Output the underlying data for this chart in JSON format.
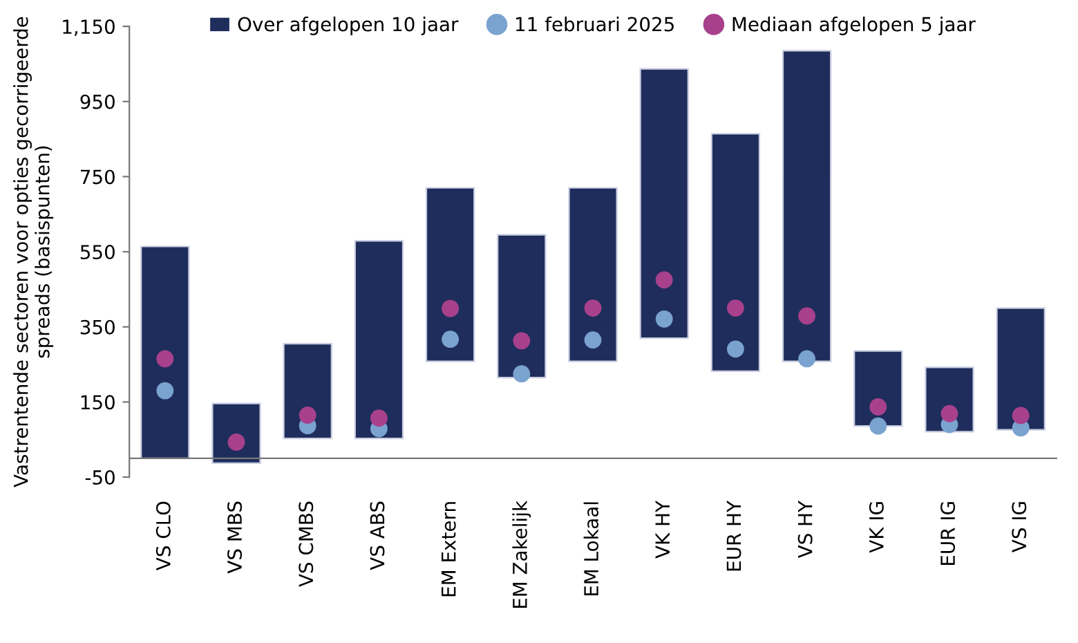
{
  "chart_data": {
    "type": "bar",
    "ylabel": "Vastrentende sectoren voor opties gecorrigeerde spreads (basispunten)",
    "categories": [
      "VS CLO",
      "VS MBS",
      "VS CMBS",
      "VS ABS",
      "EM Extern",
      "EM Zakelijk",
      "EM Lokaal",
      "VK HY",
      "EUR HY",
      "VS HY",
      "VK IG",
      "EUR IG",
      "VS IG"
    ],
    "series": [
      {
        "name": "Over afgelopen 10 jaar",
        "color": "#1f2d5c",
        "base": [
          0,
          -13,
          53,
          53,
          258,
          215,
          258,
          320,
          232,
          258,
          86,
          71,
          76
        ],
        "values": [
          564,
          159,
          252,
          526,
          462,
          380,
          462,
          717,
          632,
          827,
          200,
          171,
          324
        ]
      },
      {
        "name": "11 februari 2025",
        "type": "scatter",
        "color": "#7aa3cf",
        "x": [
          "VS CLO",
          "VS MBS",
          "VS CMBS",
          "VS ABS",
          "EM Extern",
          "EM Zakelijk",
          "EM Lokaal",
          "VK HY",
          "EUR HY",
          "VS HY",
          "VK IG",
          "EUR IG",
          "VS IG"
        ],
        "values": [
          180,
          null,
          87,
          79,
          317,
          225,
          315,
          371,
          291,
          265,
          86,
          90,
          81
        ]
      },
      {
        "name": "Mediaan afgelopen 5 jaar",
        "type": "scatter",
        "color": "#a8418c",
        "x": [
          "VS CLO",
          "VS MBS",
          "VS CMBS",
          "VS ABS",
          "EM Extern",
          "EM Zakelijk",
          "EM Lokaal",
          "VK HY",
          "EUR HY",
          "VS HY",
          "VK IG",
          "EUR IG",
          "VS IG"
        ],
        "values": [
          265,
          43,
          115,
          107,
          399,
          313,
          400,
          475,
          400,
          379,
          137,
          119,
          114
        ]
      }
    ],
    "ylim": [
      -50,
      1150
    ],
    "yticks": [
      -50,
      150,
      350,
      550,
      750,
      950,
      {
        "value": 1150,
        "label": "1,150"
      }
    ],
    "marker": "circle",
    "legend": "top",
    "grid": false
  }
}
